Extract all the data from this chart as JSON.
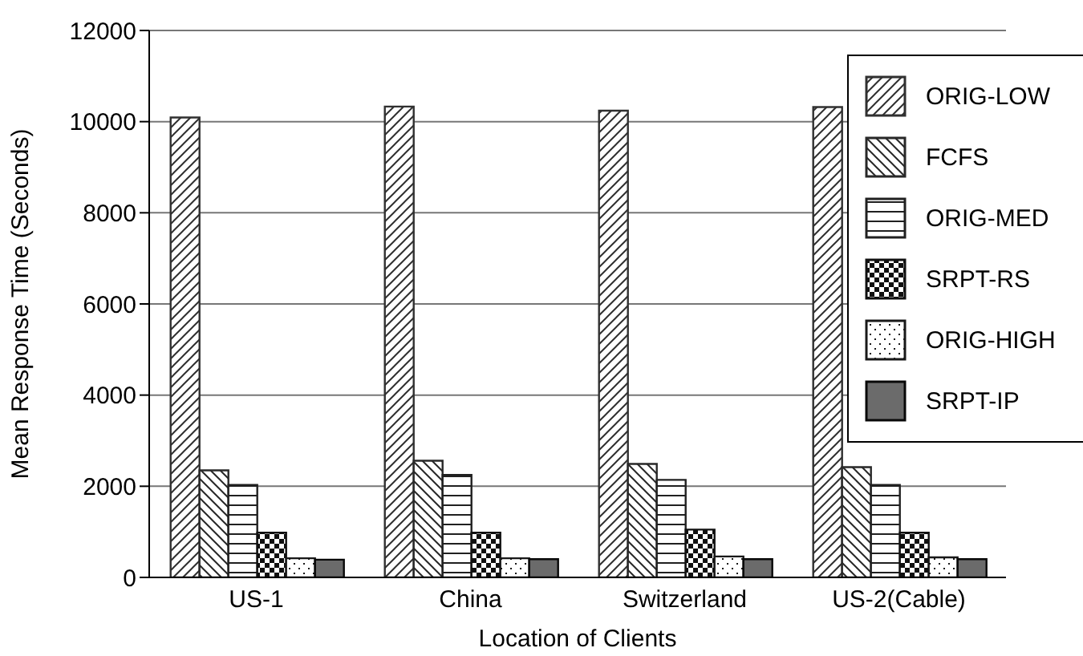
{
  "chart_data": {
    "type": "bar",
    "xlabel": "Location of Clients",
    "ylabel": "Mean Response Time (Seconds)",
    "categories": [
      "US-1",
      "China",
      "Switzerland",
      "US-2(Cable)"
    ],
    "series": [
      {
        "name": "ORIG-LOW",
        "color": "#303030",
        "values": [
          10090,
          10330,
          10240,
          10320
        ]
      },
      {
        "name": "FCFS",
        "color": "#282828",
        "values": [
          2350,
          2560,
          2490,
          2420
        ]
      },
      {
        "name": "ORIG-MED",
        "color": "#202020",
        "values": [
          2030,
          2250,
          2140,
          2030
        ]
      },
      {
        "name": "SRPT-RS",
        "color": "#101010",
        "values": [
          980,
          980,
          1050,
          980
        ]
      },
      {
        "name": "ORIG-HIGH",
        "color": "#181818",
        "values": [
          420,
          420,
          460,
          440
        ]
      },
      {
        "name": "SRPT-IP",
        "color": "#080808",
        "values": [
          390,
          400,
          400,
          400
        ]
      }
    ],
    "ylim": [
      0,
      12000
    ],
    "yticks": [
      0,
      2000,
      4000,
      6000,
      8000,
      10000,
      12000
    ],
    "grid": "y",
    "legend": "top right"
  }
}
